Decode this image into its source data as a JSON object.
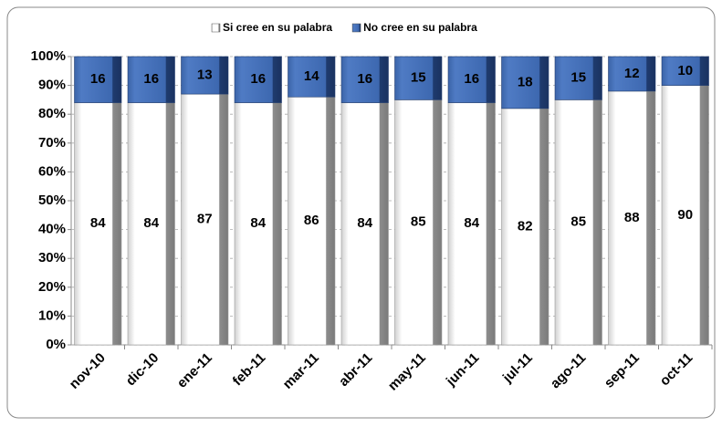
{
  "chart_data": {
    "type": "stacked-bar-100",
    "categories": [
      "nov-10",
      "dic-10",
      "ene-11",
      "feb-11",
      "mar-11",
      "abr-11",
      "may-11",
      "jun-11",
      "jul-11",
      "ago-11",
      "sep-11",
      "oct-11"
    ],
    "series": [
      {
        "name": "Si cree en su palabra",
        "color": "#e8e8e8",
        "values": [
          84,
          84,
          87,
          84,
          86,
          84,
          85,
          84,
          82,
          85,
          88,
          90
        ]
      },
      {
        "name": "No cree en su palabra",
        "color": "#2f5597",
        "values": [
          16,
          16,
          13,
          16,
          14,
          16,
          15,
          16,
          18,
          15,
          12,
          10
        ]
      }
    ],
    "ylim": [
      0,
      100
    ],
    "yticks": [
      {
        "value": 0,
        "label": "0%"
      },
      {
        "value": 10,
        "label": "10%"
      },
      {
        "value": 20,
        "label": "20%"
      },
      {
        "value": 30,
        "label": "30%"
      },
      {
        "value": 40,
        "label": "40%"
      },
      {
        "value": 50,
        "label": "50%"
      },
      {
        "value": 60,
        "label": "60%"
      },
      {
        "value": 70,
        "label": "70%"
      },
      {
        "value": 80,
        "label": "80%"
      },
      {
        "value": 90,
        "label": "90%"
      },
      {
        "value": 100,
        "label": "100%"
      }
    ],
    "grid": true,
    "legend": "top"
  }
}
